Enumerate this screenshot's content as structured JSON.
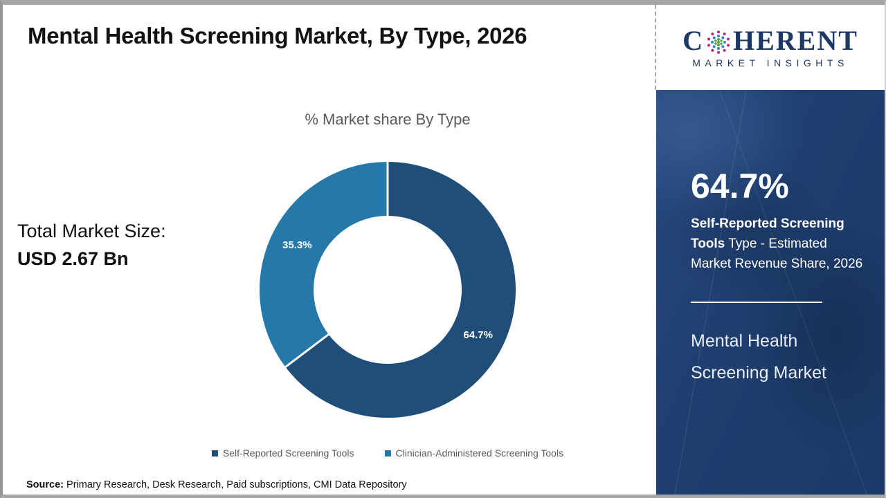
{
  "header": {
    "title": "Mental Health Screening Market, By Type, 2026"
  },
  "logo": {
    "brand_prefix": "C",
    "brand_suffix": "HERENT",
    "tagline": "MARKET INSIGHTS",
    "brand_color": "#1B3867"
  },
  "total_market": {
    "label": "Total Market Size:",
    "value": "USD 2.67 Bn"
  },
  "chart_data": {
    "type": "pie",
    "subtype": "donut",
    "title": "% Market share By Type",
    "categories": [
      "Self-Reported Screening Tools",
      "Clinician-Administered Screening Tools"
    ],
    "values": [
      64.7,
      35.3
    ],
    "labels": [
      "64.7%",
      "35.3%"
    ],
    "colors": [
      "#1F4E79",
      "#2579A9"
    ],
    "start_angle_deg": 0,
    "direction": "clockwise",
    "inner_radius_ratio": 0.58,
    "legend_position": "bottom",
    "label_color": "#FFFFFF"
  },
  "sidebar": {
    "highlight_value": "64.7%",
    "highlight_bold": "Self-Reported Screening ​Tools",
    "highlight_rest": " Type - Estimated Market Revenue Share, 2026",
    "market_name": "Mental Health Screening Market",
    "background_color": "#1E3E6F"
  },
  "source": {
    "label": "Source:",
    "text": " Primary Research, Desk Research, Paid subscriptions, CMI Data Repository"
  }
}
